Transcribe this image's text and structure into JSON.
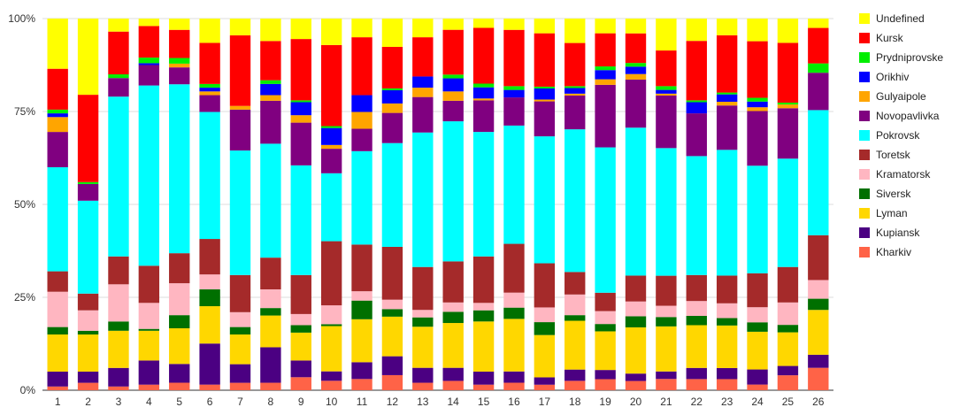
{
  "chart_data": {
    "type": "bar",
    "stacked": "percent",
    "title": "",
    "xlabel": "",
    "ylabel": "",
    "ylim": [
      0,
      100
    ],
    "grid": true,
    "legend_position": "right",
    "categories": [
      "1",
      "2",
      "3",
      "4",
      "5",
      "6",
      "7",
      "8",
      "9",
      "10",
      "11",
      "12",
      "13",
      "14",
      "15",
      "16",
      "17",
      "18",
      "19",
      "20",
      "21",
      "22",
      "23",
      "24",
      "25",
      "26"
    ],
    "y_ticks": [
      {
        "value": 0,
        "label": "0%"
      },
      {
        "value": 25,
        "label": "25%"
      },
      {
        "value": 50,
        "label": "50%"
      },
      {
        "value": 75,
        "label": "75%"
      },
      {
        "value": 100,
        "label": "100%"
      }
    ],
    "series": [
      {
        "name": "Kharkiv",
        "color": "#ff6347",
        "values": [
          1,
          2,
          1,
          1.5,
          2,
          1.5,
          2,
          2,
          3.5,
          2.5,
          3,
          4,
          2,
          2.5,
          1.5,
          2,
          1.5,
          2.5,
          3,
          2.5,
          3,
          3,
          3,
          1.5,
          4,
          6
        ]
      },
      {
        "name": "Kupiansk",
        "color": "#4b0082",
        "values": [
          4,
          3,
          5,
          6.5,
          5,
          11,
          5,
          9.5,
          4.5,
          2.5,
          4.5,
          5,
          4,
          3.5,
          3.5,
          3,
          2,
          3,
          2.5,
          2,
          2,
          3,
          3,
          4,
          2.5,
          3.5
        ]
      },
      {
        "name": "Lyman",
        "color": "#ffd700",
        "values": [
          10,
          10,
          10,
          8,
          9.5,
          10,
          8,
          8.5,
          7.5,
          12,
          11.5,
          10.5,
          11,
          12,
          13.5,
          14,
          11.5,
          13,
          10.5,
          12.5,
          12,
          11.5,
          11.5,
          10,
          9,
          12
        ]
      },
      {
        "name": "Siversk",
        "color": "#007000",
        "values": [
          2,
          1,
          2.5,
          0.5,
          3.5,
          4.5,
          2,
          2,
          2,
          0.5,
          5,
          2,
          2.5,
          3,
          3,
          3,
          3.5,
          1.5,
          2,
          3,
          2.5,
          2.5,
          2,
          2.5,
          2,
          3
        ]
      },
      {
        "name": "Kramatorsk",
        "color": "#ffb6c1",
        "values": [
          9.5,
          5.5,
          10,
          7,
          8.5,
          4,
          4,
          5,
          3,
          5,
          2.5,
          2.5,
          2,
          2.5,
          2,
          4,
          4,
          5.5,
          3.5,
          4,
          3,
          4,
          4,
          4,
          6,
          5
        ]
      },
      {
        "name": "Toretsk",
        "color": "#a52a2a",
        "values": [
          5.5,
          4.5,
          7.5,
          10,
          8,
          9.5,
          10,
          8.5,
          10.5,
          17,
          12.5,
          14,
          11.5,
          11,
          12.5,
          13,
          12,
          6,
          5,
          7,
          8,
          7,
          7.5,
          9,
          9.5,
          12
        ]
      },
      {
        "name": "Pokrovsk",
        "color": "#00ffff",
        "values": [
          28,
          25,
          43,
          48.5,
          45,
          34,
          33.5,
          30.5,
          29.5,
          18,
          25,
          27.5,
          36,
          37.5,
          33.5,
          31.5,
          34.5,
          38,
          39.5,
          40,
          34,
          32,
          34,
          28.5,
          29,
          33.5
        ]
      },
      {
        "name": "Novopavlivka",
        "color": "#800080",
        "values": [
          9.5,
          4.5,
          5,
          5.5,
          4.5,
          4.5,
          11,
          11.5,
          11.5,
          6.5,
          6,
          8,
          9.5,
          5.5,
          8.5,
          7.5,
          9.5,
          9,
          17,
          13,
          14,
          11.5,
          12,
          14.5,
          13.5,
          10
        ]
      },
      {
        "name": "Gulyaipole",
        "color": "#ffa500",
        "values": [
          4,
          0,
          0,
          0,
          1,
          1,
          1,
          1.5,
          2,
          1,
          4.5,
          2.5,
          2.5,
          2.5,
          0.5,
          0,
          0.5,
          0.5,
          1.5,
          1.5,
          0.5,
          0,
          1,
          1,
          1,
          0
        ]
      },
      {
        "name": "Orikhiv",
        "color": "#0000ff",
        "values": [
          1,
          0,
          0,
          0.5,
          0,
          1,
          0,
          3,
          3.5,
          4.5,
          4.5,
          3.5,
          3,
          3.5,
          3,
          2,
          3,
          1.5,
          2.5,
          2,
          1,
          3,
          2,
          1.5,
          0,
          0
        ]
      },
      {
        "name": "Prydniprovske",
        "color": "#00ee00",
        "values": [
          1,
          0.5,
          1,
          1.5,
          1.5,
          1,
          0,
          1,
          0.5,
          0.5,
          0,
          0.5,
          0,
          1,
          1,
          1,
          0.5,
          0.5,
          1,
          1,
          1,
          0.5,
          0.5,
          1,
          0.5,
          2.5
        ]
      },
      {
        "name": "Kursk",
        "color": "#ff0000",
        "values": [
          11,
          23.5,
          11.5,
          8.5,
          7.5,
          11,
          19,
          10.5,
          16.5,
          21.5,
          15.5,
          11,
          10.5,
          12,
          15,
          15,
          14.5,
          11.5,
          9,
          8,
          9.5,
          16,
          15.5,
          15,
          16,
          9.5
        ]
      },
      {
        "name": "Undefined",
        "color": "#ffff00",
        "values": [
          13.5,
          20.5,
          3.5,
          2,
          3,
          6.5,
          4.5,
          6,
          5.5,
          7,
          5,
          7.5,
          5,
          3,
          2.5,
          3,
          4,
          6.5,
          4,
          4,
          8.5,
          6,
          4.5,
          6,
          6.5,
          2.5
        ]
      }
    ]
  }
}
